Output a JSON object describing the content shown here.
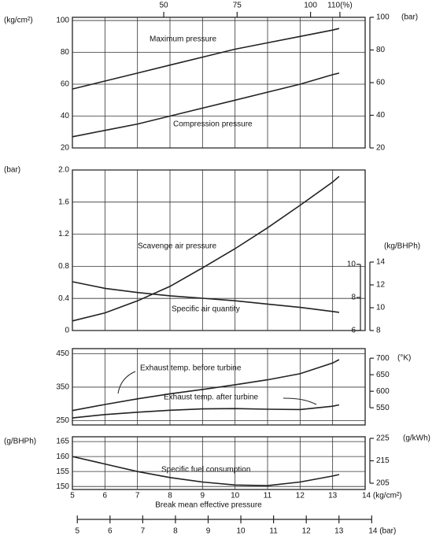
{
  "chart_data": [
    {
      "type": "line",
      "ylabel": "(kg/cm²)",
      "y2label": "(bar)",
      "x2ticks": [
        50,
        75,
        100,
        {
          "value": 110,
          "label": "110(%)"
        }
      ],
      "x2lim": [
        18.9,
        118.6
      ],
      "x": [
        5,
        6,
        7,
        8,
        9,
        10,
        11,
        12,
        13,
        13.2
      ],
      "ylim": [
        20,
        102
      ],
      "yticks": [
        20,
        40,
        60,
        80,
        100
      ],
      "y2lim": [
        20,
        100
      ],
      "y2ticks": [
        20,
        40,
        60,
        80,
        100
      ],
      "grid": true,
      "series": [
        {
          "name": "Maximum pressure",
          "color": "#222",
          "values": [
            57,
            62,
            67,
            72,
            77,
            82,
            86,
            90,
            94,
            95
          ]
        },
        {
          "name": "Compression pressure",
          "color": "#222",
          "values": [
            27,
            31,
            35,
            40,
            45,
            50,
            55,
            60,
            66,
            67
          ]
        }
      ]
    },
    {
      "type": "line",
      "ylabel": "(bar)",
      "y2label": "(kg/BHPh)",
      "x": [
        5,
        6,
        7,
        8,
        9,
        10,
        11,
        12,
        13,
        13.2
      ],
      "ylim": [
        0,
        2
      ],
      "yticks": [
        0,
        0.4,
        0.8,
        1.2,
        1.6,
        {
          "value": 2,
          "label": "2.0"
        }
      ],
      "y2lim": [
        6,
        15.71
      ],
      "y2ticks": [
        6,
        8,
        10
      ],
      "y3lim": [
        8,
        22.07
      ],
      "y3ticks": [
        8,
        10,
        12,
        14
      ],
      "grid": true,
      "series": [
        {
          "name": "Scavenge air pressure",
          "color": "#222",
          "values": [
            0.12,
            0.22,
            0.37,
            0.55,
            0.78,
            1.02,
            1.28,
            1.56,
            1.85,
            1.92
          ]
        },
        {
          "name": "Specific air quantity",
          "color": "#222",
          "axis": "y2",
          "values": [
            8.95,
            8.55,
            8.3,
            8.1,
            7.95,
            7.8,
            7.6,
            7.4,
            7.15,
            7.1
          ]
        }
      ]
    },
    {
      "type": "line",
      "y2label": "(°K)",
      "x": [
        5,
        6,
        7,
        8,
        9,
        10,
        11,
        12,
        13,
        13.2
      ],
      "ylim": [
        237,
        465
      ],
      "yticks": [
        250,
        350,
        450
      ],
      "y2lim": [
        498,
        729
      ],
      "y2ticks": [
        550,
        600,
        650,
        700
      ],
      "grid": true,
      "series": [
        {
          "name": "Exhaust temp. before turbine",
          "color": "#222",
          "values": [
            280,
            298,
            315,
            330,
            343,
            357,
            372,
            390,
            422,
            432
          ]
        },
        {
          "name": "Exhaust temp. after turbine",
          "color": "#222",
          "values": [
            258,
            268,
            275,
            281,
            285,
            286,
            284,
            283,
            293,
            297
          ]
        }
      ]
    },
    {
      "type": "line",
      "ylabel": "(g/BHPh)",
      "y2label": "(g/kWh)",
      "x": [
        5,
        6,
        7,
        8,
        9,
        10,
        11,
        12,
        13,
        13.2
      ],
      "ylim": [
        149,
        166.6
      ],
      "yticks": [
        150,
        155,
        160,
        165
      ],
      "y2lim": [
        202.2,
        225.7
      ],
      "y2ticks": [
        205,
        215,
        225
      ],
      "grid": true,
      "xlim": [
        5,
        14
      ],
      "xticks": [
        5,
        6,
        7,
        8,
        9,
        10,
        11,
        12,
        13,
        {
          "value": 14,
          "label": "14 (kg/cm²)"
        }
      ],
      "xlabel": "Break mean effective pressure",
      "bar_xlim": [
        4.85,
        13.8
      ],
      "bar_xticks": [
        5,
        6,
        7,
        8,
        9,
        10,
        11,
        12,
        13,
        {
          "value": 14,
          "label": "14 (bar)"
        }
      ],
      "series": [
        {
          "name": "Specific fuel consumption",
          "color": "#222",
          "values": [
            160,
            157.5,
            155,
            153,
            151.5,
            150.5,
            150.3,
            151.5,
            153.5,
            154
          ]
        }
      ]
    }
  ]
}
